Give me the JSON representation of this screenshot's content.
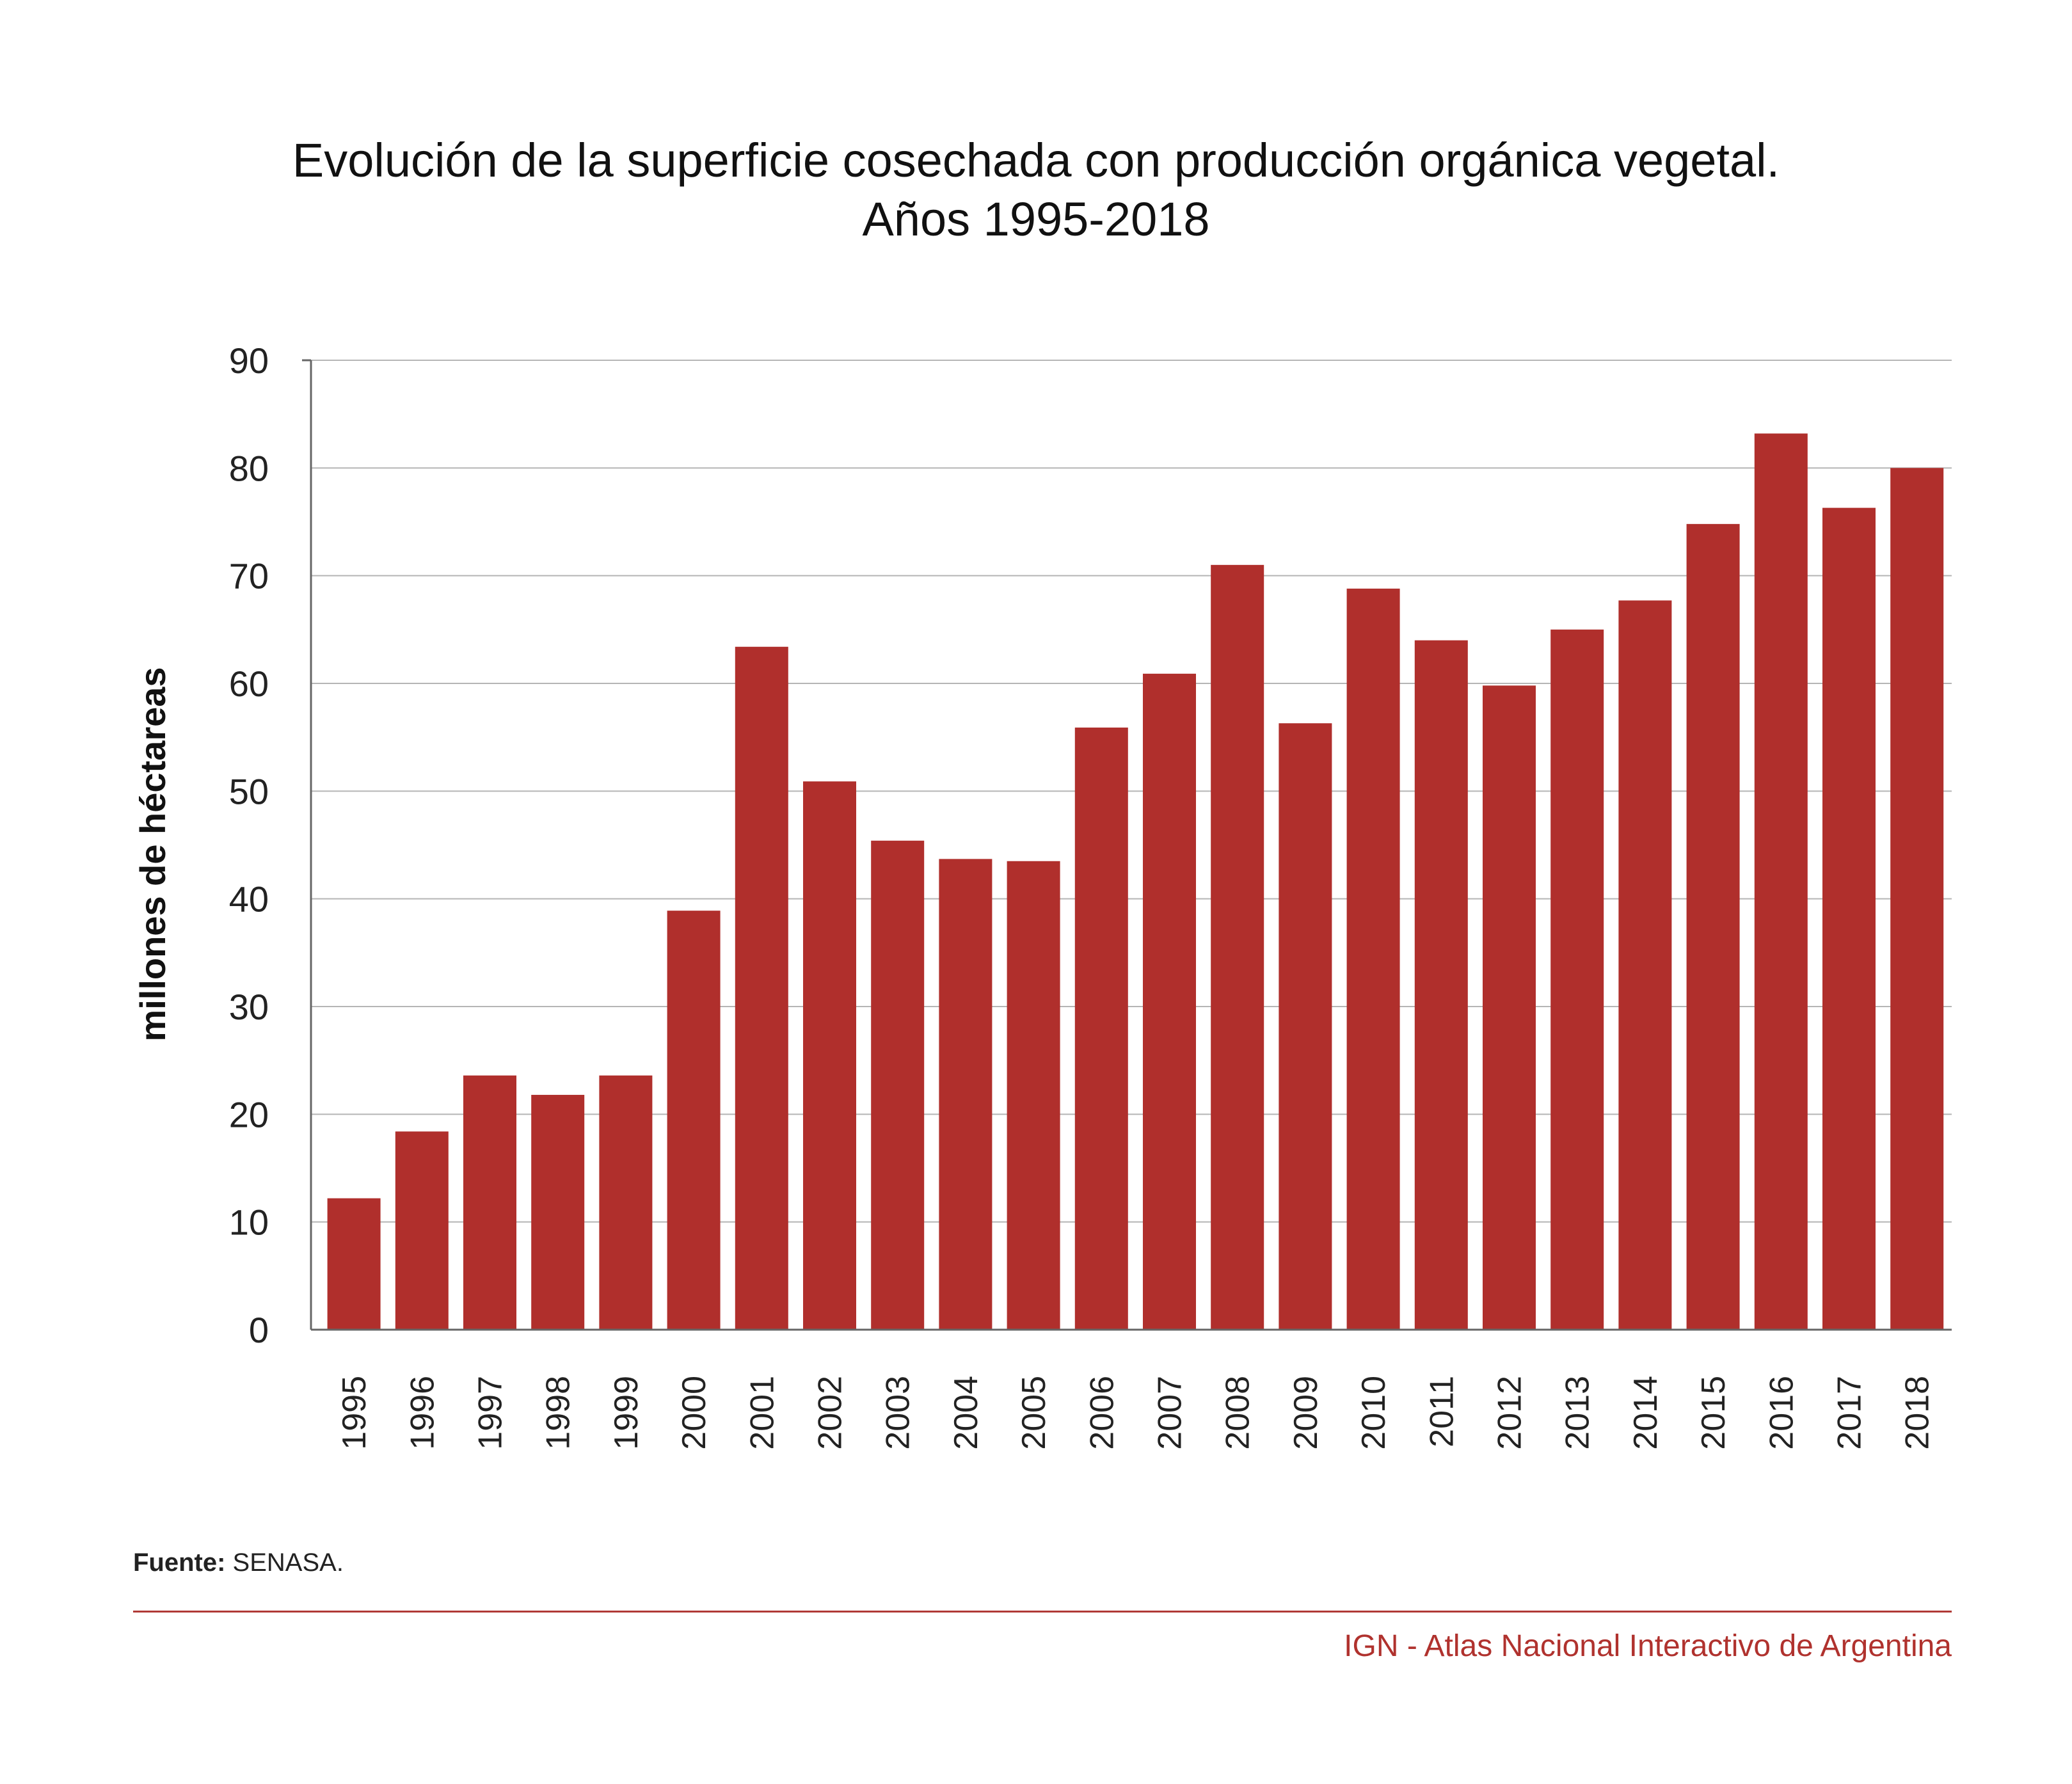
{
  "title": {
    "line1": "Evolución de la superficie cosechada con producción orgánica vegetal.",
    "line2": "Años 1995-2018"
  },
  "source": {
    "label": "Fuente:",
    "text": " SENASA."
  },
  "credit": "IGN - Atlas Nacional Interactivo de Argentina",
  "colors": {
    "bar": "#b02f2c",
    "grid": "#b5b5b5",
    "axis": "#666666",
    "rule": "#b03a36"
  },
  "chart_data": {
    "type": "bar",
    "title": "Evolución de la superficie cosechada con producción orgánica vegetal. Años 1995-2018",
    "xlabel": "",
    "ylabel": "millones de héctareas",
    "ylim": [
      0,
      90
    ],
    "yticks": [
      0,
      10,
      20,
      30,
      40,
      50,
      60,
      70,
      80,
      90
    ],
    "grid": true,
    "legend": "none",
    "categories": [
      "1995",
      "1996",
      "1997",
      "1998",
      "1999",
      "2000",
      "2001",
      "2002",
      "2003",
      "2004",
      "2005",
      "2006",
      "2007",
      "2008",
      "2009",
      "2010",
      "2011",
      "2012",
      "2013",
      "2014",
      "2015",
      "2016",
      "2017",
      "2018"
    ],
    "values": [
      12.2,
      18.4,
      23.6,
      21.8,
      23.6,
      38.9,
      63.4,
      50.9,
      45.4,
      43.7,
      43.5,
      55.9,
      60.9,
      71.0,
      56.3,
      68.8,
      64.0,
      59.8,
      65.0,
      67.7,
      74.8,
      83.2,
      76.3,
      80.0
    ]
  }
}
